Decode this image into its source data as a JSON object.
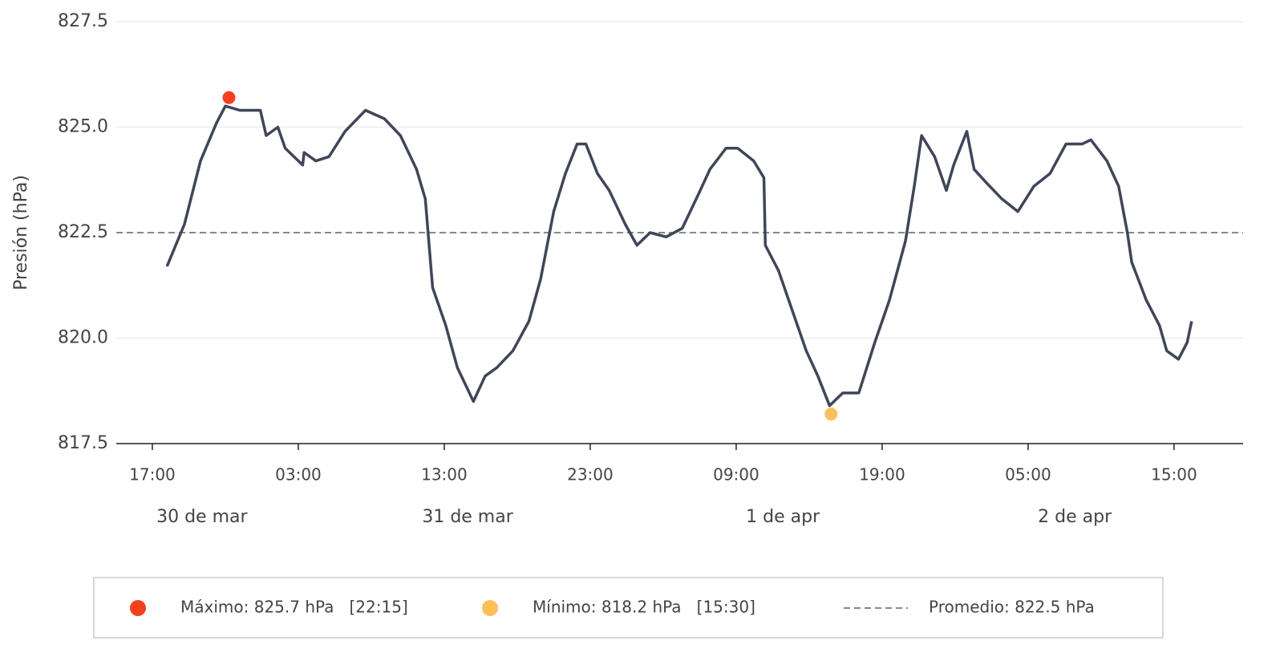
{
  "chart_data": {
    "type": "line",
    "ylabel": "Presión (hPa)",
    "x": [
      18.0,
      19.2,
      20.3,
      21.4,
      22.0,
      23.0,
      24.4,
      24.8,
      25.6,
      26.1,
      27.3,
      27.4,
      28.2,
      29.1,
      30.2,
      31.6,
      32.9,
      34.0,
      35.1,
      35.7,
      36.2,
      37.1,
      37.9,
      39.0,
      39.8,
      40.6,
      41.7,
      42.8,
      43.6,
      44.5,
      45.3,
      46.1,
      46.7,
      47.5,
      48.3,
      49.4,
      50.2,
      51.1,
      52.2,
      53.3,
      54.4,
      55.2,
      56.3,
      57.1,
      58.2,
      58.9,
      59.0,
      59.9,
      61.0,
      61.8,
      62.6,
      63.4,
      64.3,
      65.4,
      66.5,
      67.5,
      68.6,
      69.2,
      69.7,
      70.6,
      71.4,
      71.9,
      72.8,
      73.3,
      74.1,
      75.2,
      76.3,
      77.4,
      78.5,
      79.6,
      80.7,
      81.3,
      82.4,
      83.2,
      83.8,
      84.1,
      85.1,
      86.0,
      86.5,
      87.3,
      87.9,
      88.2
    ],
    "values": [
      821.7,
      822.7,
      824.2,
      825.1,
      825.5,
      825.4,
      825.4,
      824.8,
      825.0,
      824.5,
      824.1,
      824.4,
      824.2,
      824.3,
      824.9,
      825.4,
      825.2,
      824.8,
      824.0,
      823.3,
      821.2,
      820.3,
      819.3,
      818.5,
      819.1,
      819.3,
      819.7,
      820.4,
      821.4,
      823.0,
      823.9,
      824.6,
      824.6,
      823.9,
      823.5,
      822.7,
      822.2,
      822.5,
      822.4,
      822.6,
      823.4,
      824.0,
      824.5,
      824.5,
      824.2,
      823.8,
      822.2,
      821.6,
      820.5,
      819.7,
      819.1,
      818.4,
      818.7,
      818.7,
      819.9,
      820.9,
      822.3,
      823.6,
      824.8,
      824.3,
      823.5,
      824.1,
      824.9,
      824.0,
      823.7,
      823.3,
      823.0,
      823.6,
      823.9,
      824.6,
      824.6,
      824.7,
      824.2,
      823.6,
      822.5,
      821.8,
      820.9,
      820.3,
      819.7,
      819.5,
      819.9,
      820.4
    ],
    "color": "#404659",
    "max": {
      "x": 22.25,
      "y": 825.7,
      "color": "#f4401f",
      "label": "Máximo: 825.7 hPa   [22:15]"
    },
    "min": {
      "x": 63.5,
      "y": 818.2,
      "color": "#fbbf5c",
      "label": "Mínimo: 818.2 hPa   [15:30]"
    },
    "mean": {
      "value": 822.5,
      "color": "#888888",
      "label": "Promedio: 822.5 hPa"
    },
    "xlim": [
      14.53,
      91.73
    ],
    "xticks": [
      {
        "value": 17,
        "label": "17:00"
      },
      {
        "value": 27,
        "label": "03:00"
      },
      {
        "value": 37,
        "label": "13:00"
      },
      {
        "value": 47,
        "label": "23:00"
      },
      {
        "value": 57,
        "label": "09:00"
      },
      {
        "value": 67,
        "label": "19:00"
      },
      {
        "value": 77,
        "label": "05:00"
      },
      {
        "value": 87,
        "label": "15:00"
      }
    ],
    "day_labels": [
      {
        "value": 20.4,
        "label": "30 de mar"
      },
      {
        "value": 38.6,
        "label": "31 de mar"
      },
      {
        "value": 60.2,
        "label": "1 de apr"
      },
      {
        "value": 80.2,
        "label": "2 de apr"
      }
    ],
    "ylim": [
      817.5,
      827.5
    ],
    "yticks": [
      817.5,
      {
        "value": 820,
        "label": "820.0"
      },
      822.5,
      {
        "value": 825,
        "label": "825.0"
      },
      827.5
    ],
    "grid": true
  }
}
